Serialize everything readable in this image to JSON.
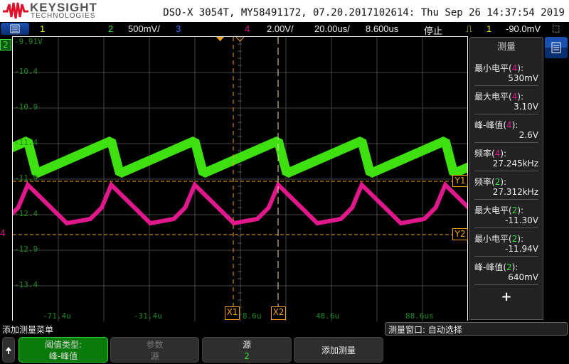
{
  "header": {
    "brand": "KEYSIGHT",
    "brand_sub": "TECHNOLOGIES",
    "title": "DSO-X 3054T, MY58491172, 07.20.2017102614: Thu Sep 26 14:37:54 2019"
  },
  "toolbar": {
    "ch1": "1",
    "ch2": "2",
    "ch2_scale": "500mV/",
    "ch3": "3",
    "ch4": "4",
    "ch4_scale": "2.00V/",
    "timebase": "20.00us/",
    "delay": "8.600us",
    "run_state": "停止",
    "trig_source": "1",
    "trig_level": "-90.0mV"
  },
  "colors": {
    "ch1": "#f0f000",
    "ch2": "#3ee03e",
    "ch3": "#3a6cff",
    "ch4": "#e0188c",
    "cursor": "#f0a020"
  },
  "plot": {
    "y_labels": [
      "-9.91V",
      "-10.4",
      "-10.9",
      "-11.4",
      "-11.9",
      "-12.4",
      "-12.9",
      "-13.4"
    ],
    "x_labels": [
      "-71.4u",
      "-31.4u",
      "8.6u",
      "48.6u",
      "88.6us"
    ],
    "ch2_marker": "2",
    "ch4_marker": "4",
    "x1": "X1",
    "x2": "X2",
    "y1": "Y1",
    "y2": "Y2"
  },
  "measure_panel": {
    "title": "测量",
    "items": [
      {
        "name": "最小电平",
        "ch": "4",
        "value": "530mV"
      },
      {
        "name": "最大电平",
        "ch": "4",
        "value": "3.10V"
      },
      {
        "name": "峰-峰值",
        "ch": "4",
        "value": "2.6V"
      },
      {
        "name": "频率",
        "ch": "4",
        "value": "27.245kHz"
      },
      {
        "name": "频率",
        "ch": "2",
        "value": "27.312kHz"
      },
      {
        "name": "最大电平",
        "ch": "2",
        "value": "-11.30V"
      },
      {
        "name": "最小电平",
        "ch": "2",
        "value": "-11.94V"
      },
      {
        "name": "峰-峰值",
        "ch": "2",
        "value": "640mV"
      }
    ],
    "add": "+"
  },
  "footer": {
    "menu_title": "添加测量菜单",
    "window_status": "测量窗口: 自动选择",
    "softkeys": [
      {
        "top": "阈值类型:",
        "bottom": "峰-峰值"
      },
      {
        "top": "参数",
        "bottom": "源"
      },
      {
        "top": "源",
        "bottom": "2"
      },
      {
        "top": "添加测量",
        "bottom": ""
      }
    ]
  }
}
